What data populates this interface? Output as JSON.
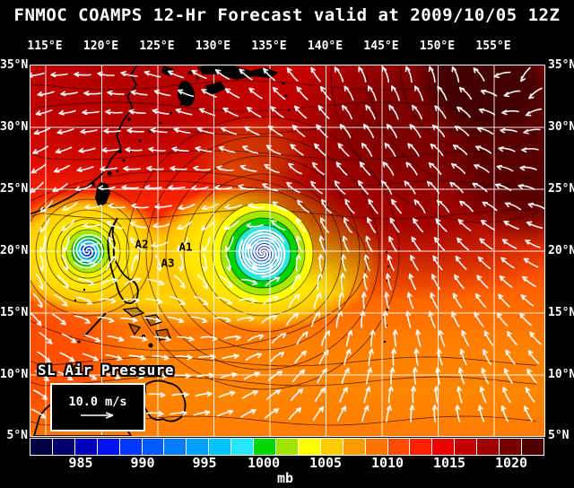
{
  "header": {
    "title": "FNMOC COAMPS 12-Hr Forecast valid at 2009/10/05 12Z"
  },
  "map": {
    "field_label": "SL Air Pressure",
    "wind_scale_label": "10.0 m/s",
    "annotations": [
      {
        "label": "A2"
      },
      {
        "label": "A1"
      },
      {
        "label": "A3"
      }
    ]
  },
  "axes": {
    "lon_labels": [
      "115°E",
      "120°E",
      "125°E",
      "130°E",
      "135°E",
      "140°E",
      "145°E",
      "150°E",
      "155°E"
    ],
    "lat_labels": [
      "35°N",
      "30°N",
      "25°N",
      "20°N",
      "15°N",
      "10°N",
      "5°N"
    ]
  },
  "colorbar": {
    "unit": "mb",
    "tick_labels": [
      "985",
      "990",
      "995",
      "1000",
      "1005",
      "1010",
      "1015",
      "1020"
    ],
    "colors": [
      "#000042",
      "#00006e",
      "#0000b8",
      "#0013f0",
      "#0037ff",
      "#005aff",
      "#007dff",
      "#00a0ff",
      "#00c3ff",
      "#26e7ff",
      "#00d600",
      "#9fe400",
      "#ffff00",
      "#ffcc00",
      "#ff9d00",
      "#ff7300",
      "#ff4a00",
      "#ff2000",
      "#ea0000",
      "#c40000",
      "#9d0000",
      "#770000",
      "#500000"
    ]
  },
  "chart_data": {
    "type": "heatmap",
    "title": "FNMOC COAMPS 12-Hr Forecast valid at 2009/10/05 12Z",
    "variable": "Sea Level Air Pressure",
    "units": "mb",
    "colorbar_ticks": [
      985,
      990,
      995,
      1000,
      1005,
      1010,
      1015,
      1020
    ],
    "lon_range_deg_e": [
      113.5,
      159.5
    ],
    "lat_range_deg_n": [
      5,
      35
    ],
    "grid_spacing_deg": 5,
    "legend_position": "bottom",
    "wind_reference": "10.0 m/s",
    "features": [
      {
        "name": "tropical-cyclone-west",
        "approx_lon_e": 118.8,
        "approx_lat_n": 20.1,
        "core": "low pressure, blue/cyan center"
      },
      {
        "name": "tropical-cyclone-east",
        "approx_lon_e": 134.4,
        "approx_lat_n": 20.0,
        "core": "low pressure, dark blue center"
      },
      {
        "name": "high-pressure-region",
        "approx_lon_e": 154,
        "approx_lat_n": 34,
        "core": "dark maroon, ~1020+ mb"
      }
    ],
    "annotations": [
      {
        "label": "A2",
        "approx_lon_e": 123.6,
        "approx_lat_n": 20.7
      },
      {
        "label": "A1",
        "approx_lon_e": 127.5,
        "approx_lat_n": 20.4
      },
      {
        "label": "A3",
        "approx_lon_e": 125.9,
        "approx_lat_n": 19.1
      }
    ]
  }
}
